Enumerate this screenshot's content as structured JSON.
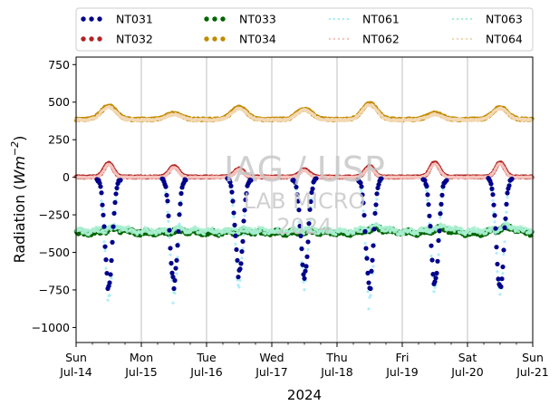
{
  "chart_data": {
    "type": "scatter",
    "xlabel": "2024",
    "ylabel_main": "Radiation (",
    "ylabel_unit_base": "Wm",
    "ylabel_unit_exp": "−2",
    "ylabel_close": ")",
    "ylim": [
      -1100,
      800
    ],
    "yticks": [
      750,
      500,
      250,
      0,
      -250,
      -500,
      -750,
      -1000
    ],
    "ytick_labels": [
      "750",
      "500",
      "250",
      "0",
      "−250",
      "−500",
      "−750",
      "−1000"
    ],
    "xlim": [
      0,
      7
    ],
    "xticks": [
      {
        "x": 0,
        "day": "Sun",
        "date": "Jul-14"
      },
      {
        "x": 1,
        "day": "Mon",
        "date": "Jul-15"
      },
      {
        "x": 2,
        "day": "Tue",
        "date": "Jul-16"
      },
      {
        "x": 3,
        "day": "Wed",
        "date": "Jul-17"
      },
      {
        "x": 4,
        "day": "Thu",
        "date": "Jul-18"
      },
      {
        "x": 5,
        "day": "Fri",
        "date": "Jul-19"
      },
      {
        "x": 6,
        "day": "Sat",
        "date": "Jul-20"
      },
      {
        "x": 7,
        "day": "Sun",
        "date": "Jul-21"
      }
    ],
    "grid": "x",
    "legend": {
      "placement": "top",
      "entries": [
        {
          "name": "NT031",
          "color": "#00008b",
          "style": "dots"
        },
        {
          "name": "NT033",
          "color": "#006400",
          "style": "dots"
        },
        {
          "name": "NT061",
          "color": "#a6ecf7",
          "style": "dotted"
        },
        {
          "name": "NT063",
          "color": "#a8f0d0",
          "style": "dotted"
        },
        {
          "name": "NT032",
          "color": "#b22222",
          "style": "dots"
        },
        {
          "name": "NT034",
          "color": "#c28a00",
          "style": "dots"
        },
        {
          "name": "NT062",
          "color": "#f6c4bd",
          "style": "dotted"
        },
        {
          "name": "NT064",
          "color": "#f3d8b4",
          "style": "dotted"
        }
      ]
    },
    "series": [
      {
        "name": "NT034",
        "color": "#c28a00",
        "base": 385,
        "amp": [
          90,
          40,
          80,
          70,
          105,
          40,
          80
        ],
        "noise": 6,
        "center": 0.5,
        "width": 0.16,
        "kind": "bump"
      },
      {
        "name": "NT064",
        "color": "#f3d8b4",
        "base": 382,
        "amp": [
          85,
          36,
          76,
          66,
          100,
          36,
          76
        ],
        "noise": 6,
        "center": 0.5,
        "width": 0.16,
        "kind": "bump"
      },
      {
        "name": "NT032",
        "color": "#b22222",
        "base": 2,
        "amp": [
          90,
          70,
          55,
          50,
          70,
          95,
          95
        ],
        "noise": 4,
        "center": 0.5,
        "width": 0.1,
        "kind": "bump"
      },
      {
        "name": "NT062",
        "color": "#f6c4bd",
        "base": 0,
        "amp": [
          85,
          65,
          50,
          45,
          65,
          90,
          90
        ],
        "noise": 4,
        "center": 0.5,
        "width": 0.1,
        "kind": "bump"
      },
      {
        "name": "NT033",
        "color": "#006400",
        "base": -370,
        "amp": [
          25,
          15,
          10,
          10,
          30,
          30,
          35
        ],
        "noise": 15,
        "center": 0.6,
        "width": 0.2,
        "kind": "wavy"
      },
      {
        "name": "NT063",
        "color": "#a8f0d0",
        "base": -360,
        "amp": [
          25,
          15,
          10,
          10,
          30,
          30,
          35
        ],
        "noise": 18,
        "center": 0.6,
        "width": 0.2,
        "kind": "wavy"
      },
      {
        "name": "NT061",
        "color": "#a6ecf7",
        "base": -10,
        "amp": [
          -790,
          -800,
          -700,
          -700,
          -840,
          -740,
          -760
        ],
        "noise": 40,
        "center": 0.5,
        "width": 0.085,
        "kind": "dip"
      },
      {
        "name": "NT031",
        "color": "#00008b",
        "base": -10,
        "amp": [
          -720,
          -710,
          -640,
          -650,
          -720,
          -700,
          -740
        ],
        "noise": 30,
        "center": 0.5,
        "width": 0.08,
        "kind": "dip"
      }
    ]
  },
  "watermark": {
    "line1": "IAG / USP",
    "line2": "LAB MICRO",
    "line3": "2024"
  }
}
